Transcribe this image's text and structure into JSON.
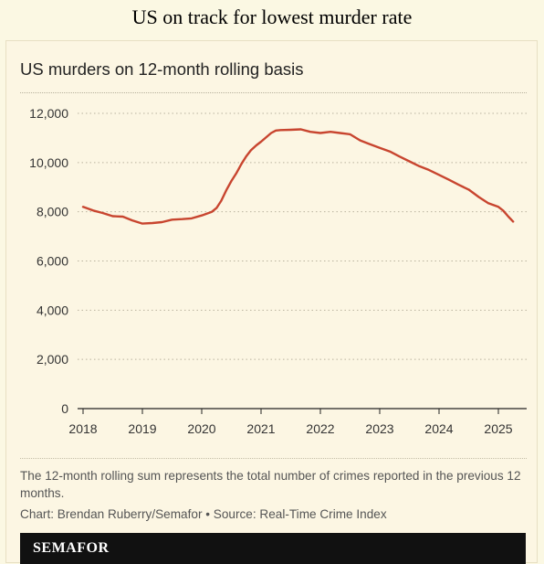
{
  "page_title": "US on track for lowest murder rate",
  "chart_data": {
    "type": "line",
    "title": "US murders on 12-month rolling basis",
    "xlabel": "",
    "ylabel": "",
    "ylim": [
      0,
      12000
    ],
    "xlim": [
      2018,
      2025.4
    ],
    "y_ticks": [
      0,
      2000,
      4000,
      6000,
      8000,
      10000,
      12000
    ],
    "y_tick_labels": [
      "0",
      "2,000",
      "4,000",
      "6,000",
      "8,000",
      "10,000",
      "12,000"
    ],
    "x_ticks": [
      2018,
      2019,
      2020,
      2021,
      2022,
      2023,
      2024,
      2025
    ],
    "x_tick_labels": [
      "2018",
      "2019",
      "2020",
      "2021",
      "2022",
      "2023",
      "2024",
      "2025"
    ],
    "grid": "horizontal dotted",
    "line_color": "#c8452f",
    "series": [
      {
        "x": [
          2018.0,
          2018.17,
          2018.33,
          2018.5,
          2018.67,
          2018.83,
          2019.0,
          2019.17,
          2019.33,
          2019.5,
          2019.67,
          2019.83,
          2020.0,
          2020.17,
          2020.25,
          2020.33,
          2020.42,
          2020.5,
          2020.58,
          2020.67,
          2020.75,
          2020.83,
          2020.92,
          2021.0,
          2021.17,
          2021.25,
          2021.33,
          2021.5,
          2021.67,
          2021.83,
          2022.0,
          2022.17,
          2022.33,
          2022.5,
          2022.67,
          2022.83,
          2023.0,
          2023.17,
          2023.33,
          2023.5,
          2023.67,
          2023.83,
          2024.0,
          2024.17,
          2024.33,
          2024.5,
          2024.67,
          2024.83,
          2025.0,
          2025.08,
          2025.17,
          2025.25
        ],
        "y": [
          8200,
          8050,
          7950,
          7820,
          7800,
          7650,
          7520,
          7540,
          7580,
          7680,
          7700,
          7730,
          7850,
          8000,
          8150,
          8450,
          8900,
          9250,
          9550,
          9950,
          10250,
          10500,
          10700,
          10850,
          11200,
          11300,
          11320,
          11330,
          11350,
          11250,
          11200,
          11250,
          11200,
          11150,
          10900,
          10750,
          10600,
          10450,
          10250,
          10050,
          9850,
          9700,
          9500,
          9300,
          9100,
          8900,
          8600,
          8350,
          8200,
          8050,
          7800,
          7600
        ]
      }
    ],
    "footnote": "The 12-month rolling sum represents the total number of crimes reported in the previous 12 months.",
    "credit": "Chart: Brendan Ruberry/Semafor • Source: Real-Time Crime Index",
    "brand": "SEMAFOR"
  }
}
